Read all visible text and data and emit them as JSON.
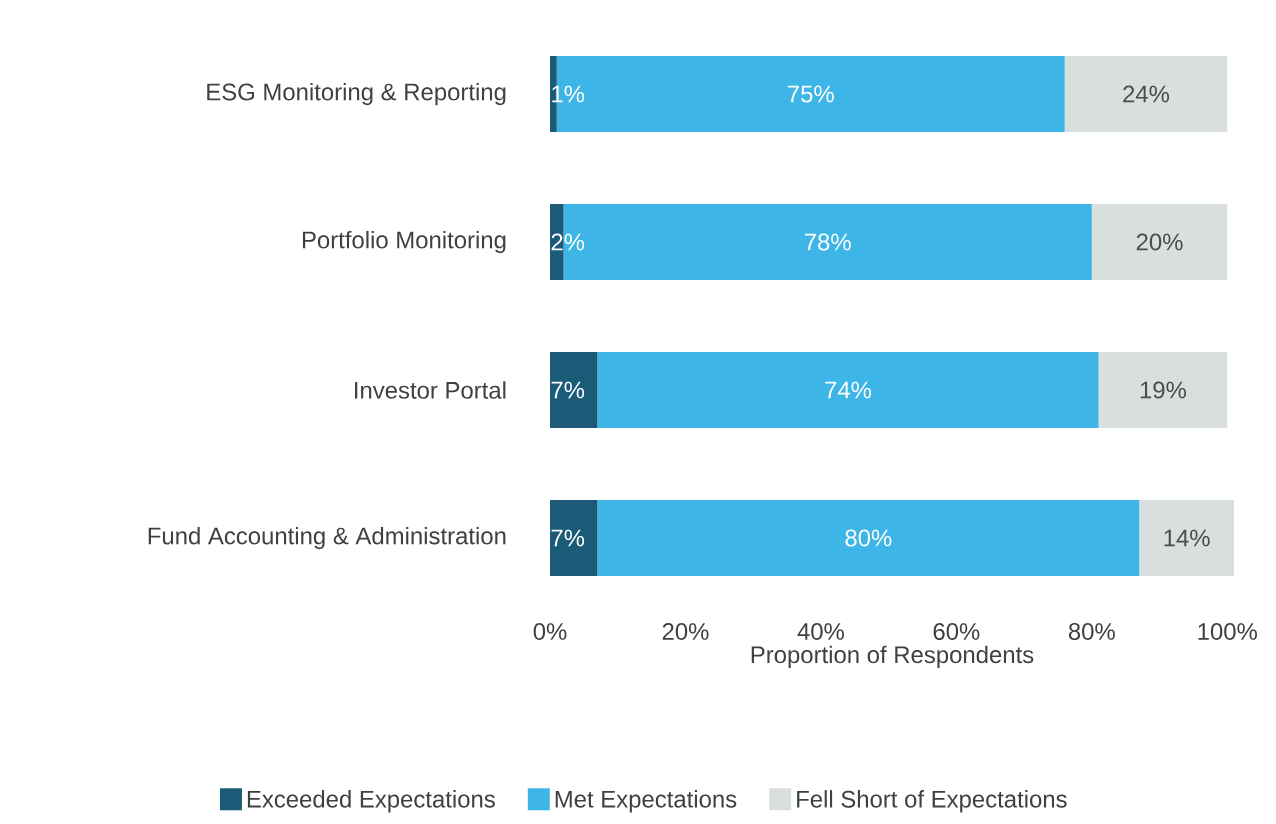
{
  "chart_data": {
    "type": "bar",
    "orientation": "horizontal",
    "stacked": true,
    "xlabel": "Proportion of Respondents",
    "categories": [
      "ESG Monitoring & Reporting",
      "Portfolio Monitoring",
      "Investor Portal",
      "Fund Accounting & Administration"
    ],
    "series": [
      {
        "name": "Exceeded Expectations",
        "color": "#1b5b78",
        "values": [
          1,
          2,
          7,
          7
        ],
        "value_labels": [
          "1%",
          "2%",
          "7%",
          "7%"
        ]
      },
      {
        "name": "Met Expectations",
        "color": "#3db5e6",
        "values": [
          75,
          78,
          74,
          80
        ],
        "value_labels": [
          "75%",
          "78%",
          "74%",
          "80%"
        ]
      },
      {
        "name": "Fell Short of Expectations",
        "color": "#d9dfde",
        "values": [
          24,
          20,
          19,
          14
        ],
        "value_labels": [
          "24%",
          "20%",
          "19%",
          "14%"
        ]
      }
    ],
    "xlim": [
      0,
      101
    ],
    "xticks": [
      {
        "value": 0,
        "label": "0%"
      },
      {
        "value": 20,
        "label": "20%"
      },
      {
        "value": 40,
        "label": "40%"
      },
      {
        "value": 60,
        "label": "60%"
      },
      {
        "value": 80,
        "label": "80%"
      },
      {
        "value": 100,
        "label": "100%"
      }
    ],
    "legend": "bottom"
  }
}
